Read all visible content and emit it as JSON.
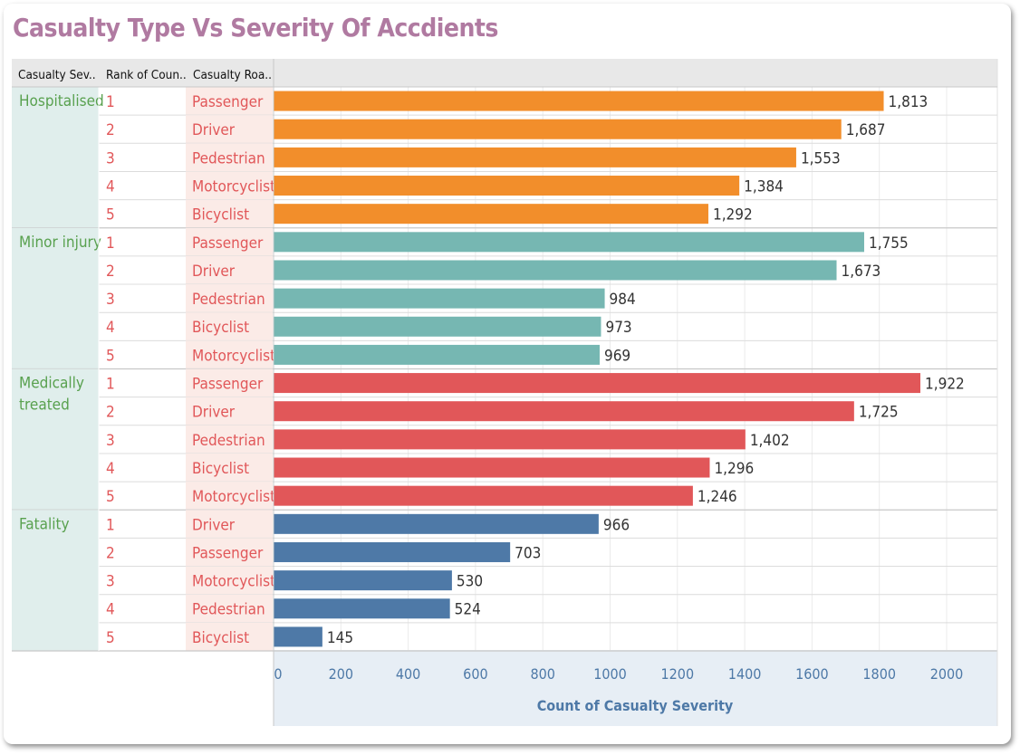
{
  "title": "Casualty Type Vs Severity Of Accdients",
  "headers": {
    "severity": "Casualty Sev..",
    "rank": "Rank of Coun..",
    "road_user": "Casualty Roa.."
  },
  "colors": {
    "title": "#b07aa1",
    "group_label": "#59a14f",
    "rank_label": "#e15759",
    "group_bg": "#e0eeec",
    "type_bg": "#fbebe7",
    "axis_text": "#4e79a7"
  },
  "chart_data": {
    "type": "bar",
    "orientation": "horizontal",
    "xlabel": "Count of Casualty Severity",
    "xlim": [
      0,
      2000
    ],
    "x_ticks": [
      0,
      200,
      400,
      600,
      800,
      1000,
      1200,
      1400,
      1600,
      1800,
      2000
    ],
    "grid": true,
    "groups": [
      {
        "severity": "Hospitalised",
        "color": "#f28e2b",
        "rows": [
          {
            "rank": "1",
            "type": "Passenger",
            "value": 1813,
            "label": "1,813"
          },
          {
            "rank": "2",
            "type": "Driver",
            "value": 1687,
            "label": "1,687"
          },
          {
            "rank": "3",
            "type": "Pedestrian",
            "value": 1553,
            "label": "1,553"
          },
          {
            "rank": "4",
            "type": "Motorcyclist",
            "value": 1384,
            "label": "1,384"
          },
          {
            "rank": "5",
            "type": "Bicyclist",
            "value": 1292,
            "label": "1,292"
          }
        ]
      },
      {
        "severity": "Minor injury",
        "color": "#76b7b2",
        "rows": [
          {
            "rank": "1",
            "type": "Passenger",
            "value": 1755,
            "label": "1,755"
          },
          {
            "rank": "2",
            "type": "Driver",
            "value": 1673,
            "label": "1,673"
          },
          {
            "rank": "3",
            "type": "Pedestrian",
            "value": 984,
            "label": "984"
          },
          {
            "rank": "4",
            "type": "Bicyclist",
            "value": 973,
            "label": "973"
          },
          {
            "rank": "5",
            "type": "Motorcyclist",
            "value": 969,
            "label": "969"
          }
        ]
      },
      {
        "severity": "Medically treated",
        "color": "#e15759",
        "rows": [
          {
            "rank": "1",
            "type": "Passenger",
            "value": 1922,
            "label": "1,922"
          },
          {
            "rank": "2",
            "type": "Driver",
            "value": 1725,
            "label": "1,725"
          },
          {
            "rank": "3",
            "type": "Pedestrian",
            "value": 1402,
            "label": "1,402"
          },
          {
            "rank": "4",
            "type": "Bicyclist",
            "value": 1296,
            "label": "1,296"
          },
          {
            "rank": "5",
            "type": "Motorcyclist",
            "value": 1246,
            "label": "1,246"
          }
        ]
      },
      {
        "severity": "Fatality",
        "color": "#4e79a7",
        "rows": [
          {
            "rank": "1",
            "type": "Driver",
            "value": 966,
            "label": "966"
          },
          {
            "rank": "2",
            "type": "Passenger",
            "value": 703,
            "label": "703"
          },
          {
            "rank": "3",
            "type": "Motorcyclist",
            "value": 530,
            "label": "530"
          },
          {
            "rank": "4",
            "type": "Pedestrian",
            "value": 524,
            "label": "524"
          },
          {
            "rank": "5",
            "type": "Bicyclist",
            "value": 145,
            "label": "145"
          }
        ]
      }
    ]
  }
}
